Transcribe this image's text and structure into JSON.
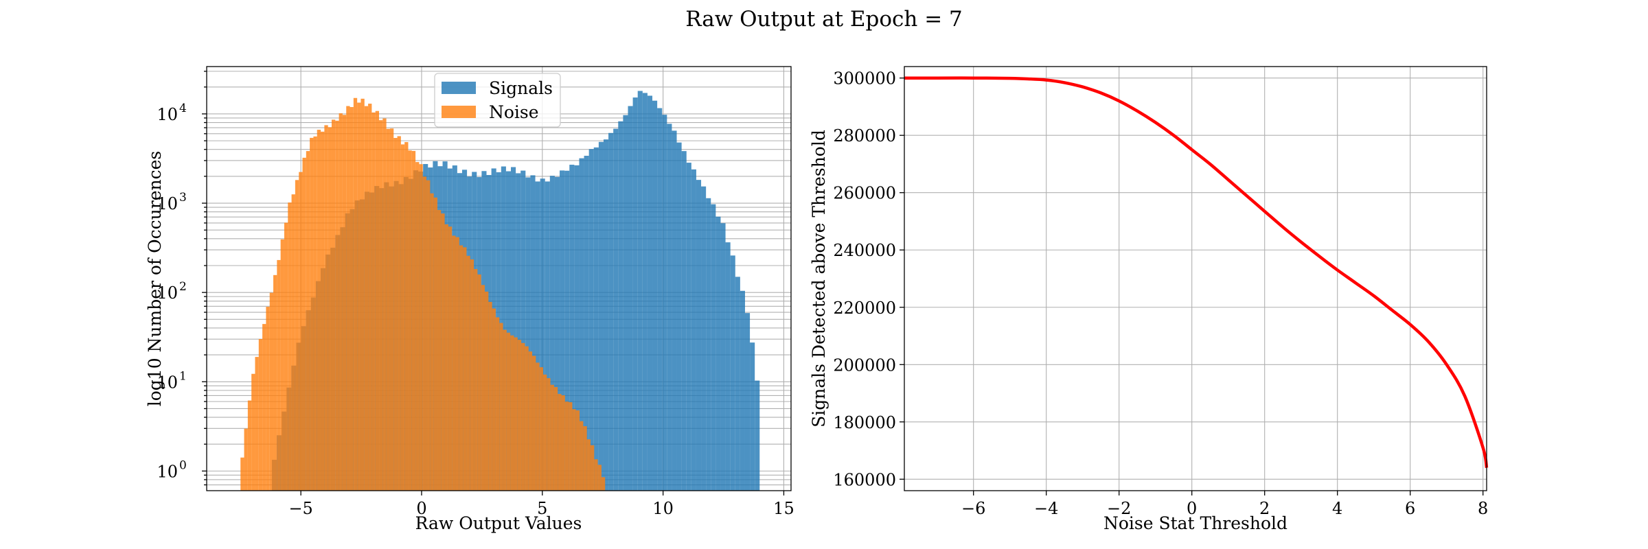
{
  "figure": {
    "title": "Raw Output at Epoch = 7"
  },
  "chart_data": [
    {
      "type": "histogram",
      "scale": "log",
      "xlabel": "Raw Output Values",
      "ylabel": "log10 Number of Occurences",
      "xlim": [
        -8.9,
        15.3
      ],
      "ylim_log10": [
        -0.22,
        4.53
      ],
      "xticks": [
        -5,
        0,
        5,
        10,
        15
      ],
      "xtick_labels": [
        "−5",
        "0",
        "5",
        "10",
        "15"
      ],
      "yticks_log10": [
        0,
        1,
        2,
        3,
        4
      ],
      "ytick_labels": [
        "10",
        "10",
        "10",
        "10",
        "10"
      ],
      "ytick_exponents": [
        "0",
        "1",
        "2",
        "3",
        "4"
      ],
      "grid": true,
      "legend": {
        "position": "upper center",
        "entries": [
          "Signals",
          "Noise"
        ]
      },
      "series": [
        {
          "name": "Signals",
          "color": "#1f77b4",
          "alpha": 0.8,
          "bin_range": [
            -6.2,
            14.0
          ],
          "bins": 100,
          "peak_log10": [
            [
              -6.2,
              0.0
            ],
            [
              -5.0,
              1.5
            ],
            [
              -4.0,
              2.4
            ],
            [
              -3.0,
              2.9
            ],
            [
              -1.5,
              3.22
            ],
            [
              0.0,
              3.38
            ],
            [
              1.0,
              3.4
            ],
            [
              3.0,
              3.35
            ],
            [
              5.0,
              3.3
            ],
            [
              6.5,
              3.4
            ],
            [
              7.5,
              3.7
            ],
            [
              8.5,
              4.05
            ],
            [
              9.0,
              4.25
            ],
            [
              9.5,
              4.15
            ],
            [
              10.5,
              3.8
            ],
            [
              11.5,
              3.3
            ],
            [
              12.5,
              2.7
            ],
            [
              13.5,
              1.8
            ],
            [
              14.0,
              0.9
            ]
          ]
        },
        {
          "name": "Noise",
          "color": "#ff7f0e",
          "alpha": 0.8,
          "bin_range": [
            -7.5,
            7.6
          ],
          "bins": 100,
          "peak_log10": [
            [
              -7.5,
              0.0
            ],
            [
              -7.0,
              1.0
            ],
            [
              -6.0,
              2.3
            ],
            [
              -5.5,
              3.0
            ],
            [
              -4.5,
              3.7
            ],
            [
              -3.5,
              4.0
            ],
            [
              -2.7,
              4.13
            ],
            [
              -1.5,
              3.95
            ],
            [
              -0.5,
              3.6
            ],
            [
              0.5,
              3.1
            ],
            [
              1.5,
              2.6
            ],
            [
              2.5,
              2.1
            ],
            [
              3.5,
              1.6
            ],
            [
              4.5,
              1.3
            ],
            [
              5.5,
              1.0
            ],
            [
              6.5,
              0.6
            ],
            [
              7.5,
              0.0
            ]
          ]
        }
      ]
    },
    {
      "type": "line",
      "xlabel": "Noise Stat Threshold",
      "ylabel": "Signals Detected above Threshold",
      "xlim": [
        -7.9,
        8.1
      ],
      "ylim": [
        156000,
        304000
      ],
      "xticks": [
        -6,
        -4,
        -2,
        0,
        2,
        4,
        6,
        8
      ],
      "xtick_labels": [
        "−6",
        "−4",
        "−2",
        "0",
        "2",
        "4",
        "6",
        "8"
      ],
      "yticks": [
        160000,
        180000,
        200000,
        220000,
        240000,
        260000,
        280000,
        300000
      ],
      "ytick_labels": [
        "160000",
        "180000",
        "200000",
        "220000",
        "240000",
        "260000",
        "280000",
        "300000"
      ],
      "grid": true,
      "series": [
        {
          "color": "#ff0000",
          "x": [
            -7.9,
            -7.0,
            -6.0,
            -5.0,
            -4.5,
            -4.0,
            -3.5,
            -3.0,
            -2.5,
            -2.0,
            -1.5,
            -1.0,
            -0.5,
            0.0,
            0.5,
            1.0,
            1.5,
            2.0,
            2.5,
            3.0,
            3.5,
            4.0,
            4.5,
            5.0,
            5.5,
            6.0,
            6.5,
            7.0,
            7.5,
            8.0,
            8.1
          ],
          "y": [
            300000,
            300000,
            300000,
            299900,
            299700,
            299300,
            298400,
            296900,
            294800,
            292000,
            288500,
            284500,
            280000,
            275000,
            270000,
            264500,
            259000,
            253500,
            248000,
            242800,
            237800,
            233000,
            228500,
            224000,
            219000,
            214000,
            208000,
            200000,
            189000,
            171000,
            164000
          ]
        }
      ]
    }
  ]
}
